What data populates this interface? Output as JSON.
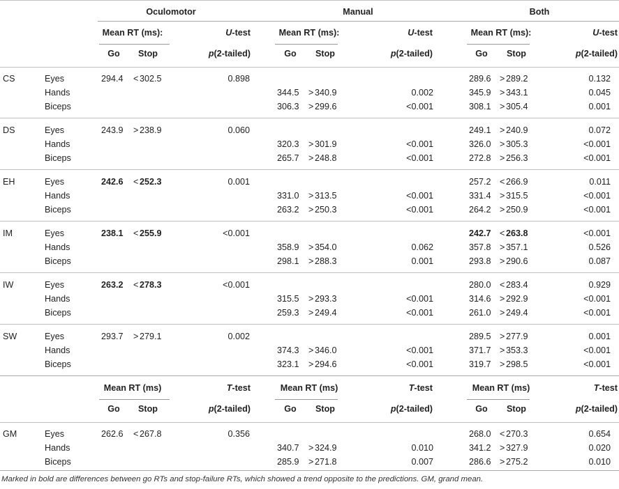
{
  "groups": [
    "Oculomotor",
    "Manual",
    "Both"
  ],
  "header_top": {
    "mean_rt": "Mean RT (ms):",
    "u_letter": "U",
    "u_rest": "-test",
    "go": "Go",
    "stop": "Stop",
    "p_letter": "p",
    "p_rest": "(2-tailed)"
  },
  "header_bottom": {
    "mean_rt": "Mean RT (ms)",
    "t_letter": "T",
    "t_rest": "-test",
    "go": "Go",
    "stop": "Stop",
    "p_letter": "p",
    "p_rest": "(2-tailed)"
  },
  "effectors": [
    "Eyes",
    "Hands",
    "Biceps"
  ],
  "subjects": [
    {
      "code": "CS",
      "ocu": {
        "go": "294.4",
        "op": "<",
        "stop": "302.5",
        "p": "0.898",
        "bold": false
      },
      "man": [
        {
          "go": "344.5",
          "op": ">",
          "stop": "340.9",
          "p": "0.002"
        },
        {
          "go": "306.3",
          "op": ">",
          "stop": "299.6",
          "p": "<0.001"
        }
      ],
      "both": [
        {
          "go": "289.6",
          "op": ">",
          "stop": "289.2",
          "p": "0.132",
          "bold": false
        },
        {
          "go": "345.9",
          "op": ">",
          "stop": "343.1",
          "p": "0.045"
        },
        {
          "go": "308.1",
          "op": ">",
          "stop": "305.4",
          "p": "0.001"
        }
      ]
    },
    {
      "code": "DS",
      "ocu": {
        "go": "243.9",
        "op": ">",
        "stop": "238.9",
        "p": "0.060",
        "bold": false
      },
      "man": [
        {
          "go": "320.3",
          "op": ">",
          "stop": "301.9",
          "p": "<0.001"
        },
        {
          "go": "265.7",
          "op": ">",
          "stop": "248.8",
          "p": "<0.001"
        }
      ],
      "both": [
        {
          "go": "249.1",
          "op": ">",
          "stop": "240.9",
          "p": "0.072",
          "bold": false
        },
        {
          "go": "326.0",
          "op": ">",
          "stop": "305.3",
          "p": "<0.001"
        },
        {
          "go": "272.8",
          "op": ">",
          "stop": "256.3",
          "p": "<0.001"
        }
      ]
    },
    {
      "code": "EH",
      "ocu": {
        "go": "242.6",
        "op": "<",
        "stop": "252.3",
        "p": "0.001",
        "bold": true
      },
      "man": [
        {
          "go": "331.0",
          "op": ">",
          "stop": "313.5",
          "p": "<0.001"
        },
        {
          "go": "263.2",
          "op": ">",
          "stop": "250.3",
          "p": "<0.001"
        }
      ],
      "both": [
        {
          "go": "257.2",
          "op": "<",
          "stop": "266.9",
          "p": "0.011",
          "bold": false
        },
        {
          "go": "331.4",
          "op": ">",
          "stop": "315.5",
          "p": "<0.001"
        },
        {
          "go": "264.2",
          "op": ">",
          "stop": "250.9",
          "p": "<0.001"
        }
      ]
    },
    {
      "code": "IM",
      "ocu": {
        "go": "238.1",
        "op": "<",
        "stop": "255.9",
        "p": "<0.001",
        "bold": true
      },
      "man": [
        {
          "go": "358.9",
          "op": ">",
          "stop": "354.0",
          "p": "0.062"
        },
        {
          "go": "298.1",
          "op": ">",
          "stop": "288.3",
          "p": "0.001"
        }
      ],
      "both": [
        {
          "go": "242.7",
          "op": "<",
          "stop": "263.8",
          "p": "<0.001",
          "bold": true
        },
        {
          "go": "357.8",
          "op": ">",
          "stop": "357.1",
          "p": "0.526"
        },
        {
          "go": "293.8",
          "op": ">",
          "stop": "290.6",
          "p": "0.087"
        }
      ]
    },
    {
      "code": "IW",
      "ocu": {
        "go": "263.2",
        "op": "<",
        "stop": "278.3",
        "p": "<0.001",
        "bold": true
      },
      "man": [
        {
          "go": "315.5",
          "op": ">",
          "stop": "293.3",
          "p": "<0.001"
        },
        {
          "go": "259.3",
          "op": ">",
          "stop": "249.4",
          "p": "<0.001"
        }
      ],
      "both": [
        {
          "go": "280.0",
          "op": "<",
          "stop": "283.4",
          "p": "0.929",
          "bold": false
        },
        {
          "go": "314.6",
          "op": ">",
          "stop": "292.9",
          "p": "<0.001"
        },
        {
          "go": "261.0",
          "op": ">",
          "stop": "249.4",
          "p": "<0.001"
        }
      ]
    },
    {
      "code": "SW",
      "ocu": {
        "go": "293.7",
        "op": ">",
        "stop": "279.1",
        "p": "0.002",
        "bold": false
      },
      "man": [
        {
          "go": "374.3",
          "op": ">",
          "stop": "346.0",
          "p": "<0.001"
        },
        {
          "go": "323.1",
          "op": ">",
          "stop": "294.6",
          "p": "<0.001"
        }
      ],
      "both": [
        {
          "go": "289.5",
          "op": ">",
          "stop": "277.9",
          "p": "0.001",
          "bold": false
        },
        {
          "go": "371.7",
          "op": ">",
          "stop": "353.3",
          "p": "<0.001"
        },
        {
          "go": "319.7",
          "op": ">",
          "stop": "298.5",
          "p": "<0.001"
        }
      ]
    }
  ],
  "grand_mean": {
    "code": "GM",
    "ocu": {
      "go": "262.6",
      "op": "<",
      "stop": "267.8",
      "p": "0.356",
      "bold": false
    },
    "man": [
      {
        "go": "340.7",
        "op": ">",
        "stop": "324.9",
        "p": "0.010"
      },
      {
        "go": "285.9",
        "op": ">",
        "stop": "271.8",
        "p": "0.007"
      }
    ],
    "both": [
      {
        "go": "268.0",
        "op": "<",
        "stop": "270.3",
        "p": "0.654",
        "bold": false
      },
      {
        "go": "341.2",
        "op": ">",
        "stop": "327.9",
        "p": "0.020"
      },
      {
        "go": "286.6",
        "op": ">",
        "stop": "275.2",
        "p": "0.010"
      }
    ]
  },
  "footnote": "Marked in bold are differences between go RTs and stop-failure RTs, which showed a trend opposite to the predictions. GM, grand mean."
}
